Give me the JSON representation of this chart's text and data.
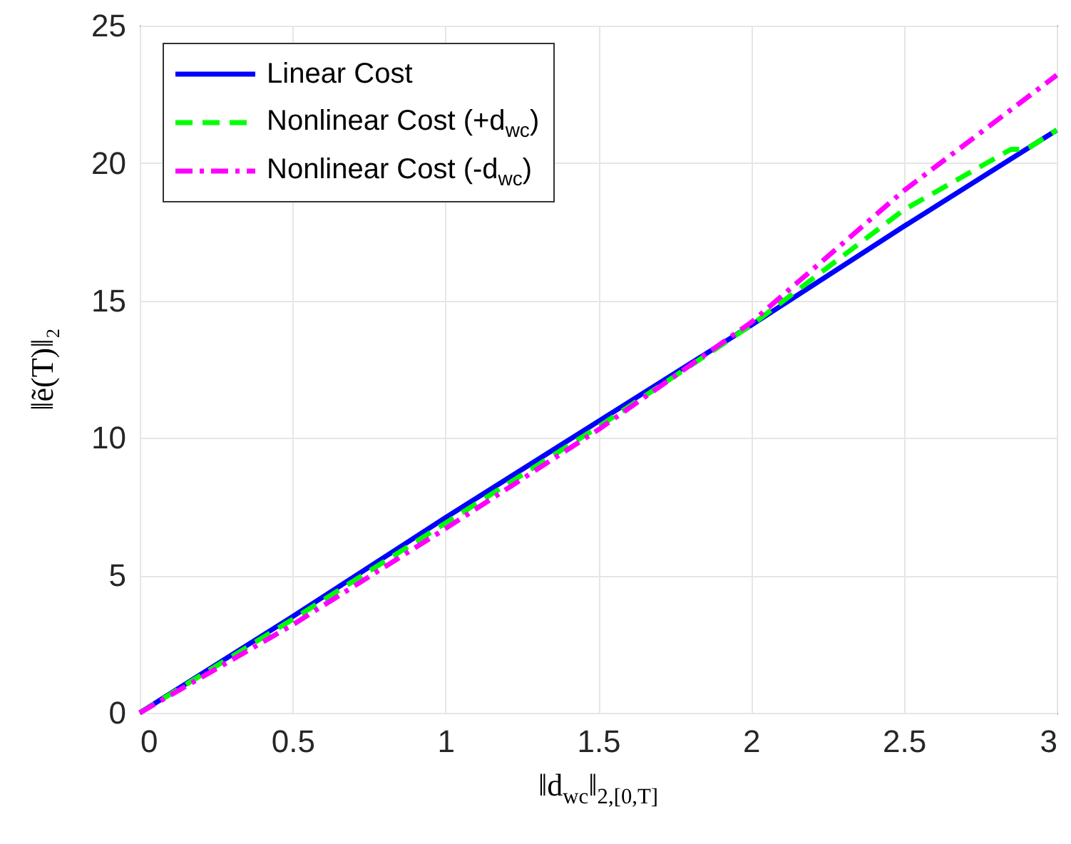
{
  "chart_data": {
    "type": "line",
    "xlabel": "‖d$_{wc}$‖$_{2,[0,T]}$",
    "ylabel": "‖ẽ(T)‖₂",
    "xlim": [
      0,
      3
    ],
    "xticks": [
      0,
      0.5,
      1,
      1.5,
      2,
      2.5,
      3
    ],
    "ylim": [
      0,
      25
    ],
    "yticks": [
      0,
      5,
      10,
      15,
      20,
      25
    ],
    "grid": true,
    "legend": "top left",
    "series": [
      {
        "name": "Linear Cost",
        "color": "#0000ff",
        "line_style": "solid",
        "x": [
          0,
          0.5,
          1,
          1.5,
          2,
          2.5,
          3
        ],
        "values": [
          0,
          3.5,
          7.1,
          10.6,
          14.1,
          17.7,
          21.2
        ]
      },
      {
        "name": "Nonlinear Cost (+d$_{wc}$)",
        "color": "#00ff00",
        "line_style": "dashed",
        "x": [
          0,
          0.5,
          1,
          1.5,
          2,
          2.5,
          2.85,
          2.9,
          3
        ],
        "values": [
          0,
          3.4,
          6.9,
          10.4,
          14.1,
          18.3,
          20.5,
          20.5,
          21.2
        ]
      },
      {
        "name": "Nonlinear Cost (-d$_{wc}$)",
        "color": "#ff00ff",
        "line_style": "dashdot",
        "x": [
          0,
          0.5,
          1,
          1.5,
          2,
          2.5,
          2.75,
          3
        ],
        "values": [
          0,
          3.2,
          6.7,
          10.3,
          14.2,
          19.0,
          21.1,
          23.2
        ]
      }
    ]
  }
}
